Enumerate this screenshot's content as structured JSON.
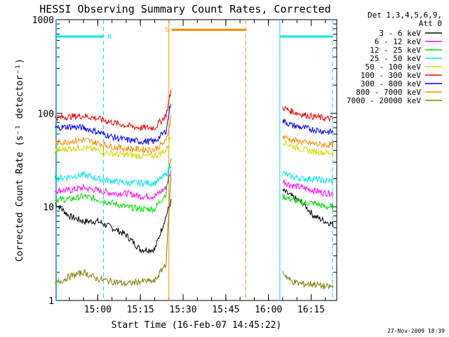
{
  "chart_data": {
    "type": "line",
    "title": "HESSI Observing Summary Count Rates, Corrected",
    "xlabel": "Start Time (16-Feb-07 14:45:22)",
    "ylabel": "Corrected Count Rate (s⁻¹ detector⁻¹)",
    "y_scale": "log",
    "ylim": [
      1,
      1000
    ],
    "xlim": [
      "14:45:22",
      "16:24:00"
    ],
    "x_ticks": [
      "15:00",
      "15:15",
      "15:30",
      "15:45",
      "16:00",
      "16:15"
    ],
    "y_ticks": [
      "1",
      "10",
      "100",
      "1000"
    ],
    "footer": "27-Nov-2009 18:39",
    "legend": {
      "position": "top-right",
      "header": [
        "Det 1,3,4,5,6,9,",
        "Att 0"
      ]
    },
    "series": [
      {
        "name": "3 - 6 keV",
        "color": "#000000",
        "x": [
          "14:45",
          "14:50",
          "14:55",
          "15:00",
          "15:05",
          "15:10",
          "15:15",
          "15:20",
          "15:24",
          "15:26",
          "16:02",
          "16:05",
          "16:08",
          "16:12",
          "16:16",
          "16:20",
          "16:23"
        ],
        "values": [
          11,
          8,
          7,
          7,
          6,
          5,
          3.5,
          3.5,
          8,
          12,
          null,
          15,
          13,
          11,
          8,
          7,
          6.5
        ]
      },
      {
        "name": "6 - 12 keV",
        "color": "#ff00ff",
        "x": [
          "14:45",
          "14:50",
          "14:55",
          "15:00",
          "15:05",
          "15:10",
          "15:15",
          "15:20",
          "15:24",
          "15:26",
          "16:02",
          "16:05",
          "16:08",
          "16:12",
          "16:16",
          "16:20",
          "16:23"
        ],
        "values": [
          15,
          15,
          16,
          15,
          14,
          14,
          13,
          13,
          16,
          25,
          null,
          19,
          17,
          16,
          15,
          14,
          14
        ]
      },
      {
        "name": "12 - 25 keV",
        "color": "#00dd00",
        "x": [
          "14:45",
          "14:50",
          "14:55",
          "15:00",
          "15:05",
          "15:10",
          "15:15",
          "15:20",
          "15:24",
          "15:26",
          "16:02",
          "16:05",
          "16:08",
          "16:12",
          "16:16",
          "16:20",
          "16:23"
        ],
        "values": [
          12,
          12,
          13,
          12,
          11,
          10,
          9.5,
          9.5,
          14,
          40,
          null,
          13,
          12,
          11,
          11,
          10,
          10
        ]
      },
      {
        "name": "25 - 50 keV",
        "color": "#00e5e5",
        "x": [
          "14:45",
          "14:50",
          "14:55",
          "15:00",
          "15:05",
          "15:10",
          "15:15",
          "15:20",
          "15:24",
          "15:26",
          "16:02",
          "16:05",
          "16:08",
          "16:12",
          "16:16",
          "16:20",
          "16:23"
        ],
        "values": [
          20,
          21,
          22,
          20,
          19,
          18,
          18,
          18,
          22,
          30,
          null,
          23,
          21,
          20,
          20,
          19,
          19
        ]
      },
      {
        "name": "50 - 100 keV",
        "color": "#d8d800",
        "x": [
          "14:45",
          "14:50",
          "14:55",
          "15:00",
          "15:05",
          "15:10",
          "15:15",
          "15:20",
          "15:24",
          "15:26",
          "16:02",
          "16:05",
          "16:08",
          "16:12",
          "16:16",
          "16:20",
          "16:23"
        ],
        "values": [
          40,
          42,
          43,
          40,
          37,
          36,
          35,
          35,
          40,
          60,
          null,
          50,
          45,
          41,
          39,
          38,
          38
        ]
      },
      {
        "name": "100 - 300 keV",
        "color": "#ee0000",
        "x": [
          "14:45",
          "14:50",
          "14:55",
          "15:00",
          "15:05",
          "15:10",
          "15:15",
          "15:20",
          "15:24",
          "15:26",
          "16:02",
          "16:05",
          "16:08",
          "16:12",
          "16:16",
          "16:20",
          "16:23"
        ],
        "values": [
          90,
          92,
          94,
          88,
          80,
          74,
          70,
          70,
          95,
          190,
          null,
          115,
          105,
          97,
          92,
          88,
          87
        ]
      },
      {
        "name": "300 - 800 keV",
        "color": "#0000ee",
        "x": [
          "14:45",
          "14:50",
          "14:55",
          "15:00",
          "15:05",
          "15:10",
          "15:15",
          "15:20",
          "15:24",
          "15:26",
          "16:02",
          "16:05",
          "16:08",
          "16:12",
          "16:16",
          "16:20",
          "16:23"
        ],
        "values": [
          70,
          72,
          70,
          63,
          56,
          52,
          50,
          50,
          65,
          150,
          null,
          83,
          75,
          70,
          67,
          64,
          63
        ]
      },
      {
        "name": "800 - 7000 keV",
        "color": "#ff8800",
        "x": [
          "14:45",
          "14:50",
          "14:55",
          "15:00",
          "15:05",
          "15:10",
          "15:15",
          "15:20",
          "15:24",
          "15:26",
          "16:02",
          "16:05",
          "16:08",
          "16:12",
          "16:16",
          "16:20",
          "16:23"
        ],
        "values": [
          48,
          50,
          52,
          48,
          44,
          42,
          41,
          41,
          50,
          100,
          null,
          57,
          52,
          49,
          47,
          46,
          46
        ]
      },
      {
        "name": "7000 - 20000 keV",
        "color": "#808000",
        "x": [
          "14:45",
          "14:50",
          "14:55",
          "15:00",
          "15:05",
          "15:10",
          "15:15",
          "15:20",
          "15:24",
          "15:26",
          "16:02",
          "16:05",
          "16:08",
          "16:12",
          "16:16",
          "16:20",
          "16:23"
        ],
        "values": [
          1.5,
          1.8,
          2.0,
          1.7,
          1.6,
          1.5,
          1.6,
          1.6,
          2.5,
          30,
          null,
          2.0,
          1.6,
          1.5,
          1.5,
          1.4,
          1.4
        ]
      }
    ],
    "annotations": [
      {
        "type": "vline",
        "x": "14:45:30",
        "color": "#00e5e5",
        "style": "solid"
      },
      {
        "type": "vline",
        "x": "15:02:00",
        "color": "#00e5e5",
        "style": "dashed"
      },
      {
        "type": "vline",
        "x": "16:04:00",
        "color": "#00e5e5",
        "style": "solid"
      },
      {
        "type": "vline",
        "x": "16:22:30",
        "color": "#00e5e5",
        "style": "dashed"
      },
      {
        "type": "vline",
        "x": "15:25:00",
        "color": "#ff8800",
        "style": "solid"
      },
      {
        "type": "vline",
        "x": "15:52:00",
        "color": "#ff8800",
        "style": "dashed"
      },
      {
        "type": "hbar",
        "x1": "14:45:22",
        "x2": "15:02:00",
        "y": 660,
        "color": "#00e5e5",
        "label": "N"
      },
      {
        "type": "hbar",
        "x1": "16:04:00",
        "x2": "16:22:30",
        "y": 660,
        "color": "#00e5e5",
        "label": ""
      },
      {
        "type": "hbar",
        "x1": "15:26:00",
        "x2": "15:52:00",
        "y": 780,
        "color": "#ff8800",
        "label": "S"
      }
    ],
    "grid": false
  }
}
